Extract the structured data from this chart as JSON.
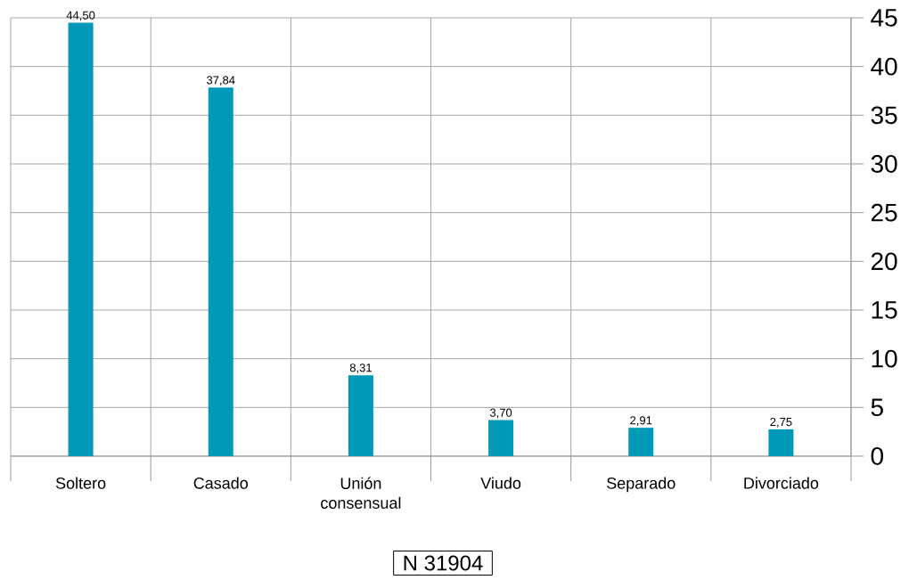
{
  "chart_data": {
    "type": "bar",
    "categories": [
      "Soltero",
      "Casado",
      "Unión consensual",
      "Viudo",
      "Separado",
      "Divorciado"
    ],
    "values": [
      44.5,
      37.84,
      8.31,
      3.7,
      2.91,
      2.75
    ],
    "value_labels": [
      "44,50",
      "37,84",
      "8,31",
      "3,70",
      "2,91",
      "2,75"
    ],
    "color": "#0099b8",
    "ylim": [
      0,
      45
    ],
    "yticks": [
      0,
      5,
      10,
      15,
      20,
      25,
      30,
      35,
      40,
      45
    ],
    "grid": true,
    "annotations": [
      "N 31904"
    ]
  }
}
